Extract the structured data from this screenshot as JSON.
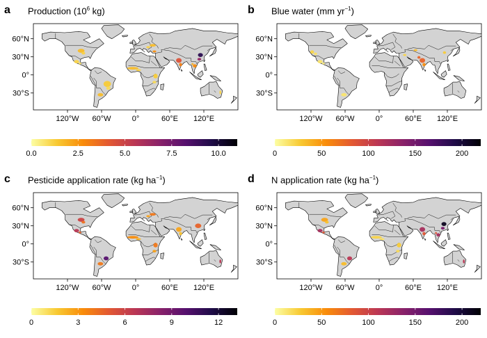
{
  "axis_ticks": {
    "lat": [
      "60°N",
      "30°N",
      "0°",
      "30°S"
    ],
    "lon": [
      "120°W",
      "60°W",
      "0°",
      "60°E",
      "120°E"
    ]
  },
  "colors": {
    "land": "#d3d3d3",
    "ocean": "#ffffff",
    "border": "#000000",
    "ramp": [
      "#fcfea4",
      "#f8c932",
      "#f98c0a",
      "#e35932",
      "#bb3754",
      "#89226a",
      "#56106e",
      "#1f0c48",
      "#000004"
    ]
  },
  "panels": [
    {
      "label": "a",
      "title_pre": "Production (10",
      "title_sup": "6",
      "title_post": " kg)",
      "colorbar": {
        "ticks": [
          "0.0",
          "2.5",
          "5.0",
          "7.5",
          "10.0"
        ],
        "min": 0,
        "max": 11
      },
      "hotspots": [
        "Central USA",
        "Mexico",
        "Brazil",
        "Argentina",
        "West Africa",
        "East Africa",
        "India",
        "East China",
        "Southeast Asia",
        "Turkey",
        "Eastern Europe",
        "Eastern Australia"
      ]
    },
    {
      "label": "b",
      "title_pre": "Blue water (mm yr",
      "title_sup": "−1",
      "title_post": ")",
      "colorbar": {
        "ticks": [
          "0",
          "50",
          "100",
          "150",
          "200"
        ],
        "min": 0,
        "max": 220
      },
      "hotspots": [
        "Western USA",
        "Mexico",
        "Central Asia",
        "India",
        "Pakistan",
        "Middle East",
        "North China",
        "Argentina"
      ]
    },
    {
      "label": "c",
      "title_pre": "Pesticide application rate (kg ha",
      "title_sup": "−1",
      "title_post": ")",
      "colorbar": {
        "ticks": [
          "0",
          "3",
          "6",
          "9",
          "12"
        ],
        "min": 0,
        "max": 13.2
      },
      "hotspots": [
        "Central USA",
        "Mexico",
        "Southern Brazil",
        "Argentina",
        "West Africa",
        "East Africa",
        "India",
        "China",
        "Eastern Europe",
        "Eastern Australia"
      ]
    },
    {
      "label": "d",
      "title_pre": "N application rate (kg ha",
      "title_sup": "−1",
      "title_post": ")",
      "colorbar": {
        "ticks": [
          "0",
          "50",
          "100",
          "150",
          "200"
        ],
        "min": 0,
        "max": 220
      },
      "hotspots": [
        "Mexico",
        "Central USA",
        "Southern Brazil",
        "Argentina",
        "West Africa",
        "East Africa",
        "India",
        "East China",
        "Southeast Asia",
        "Eastern Australia"
      ]
    }
  ]
}
